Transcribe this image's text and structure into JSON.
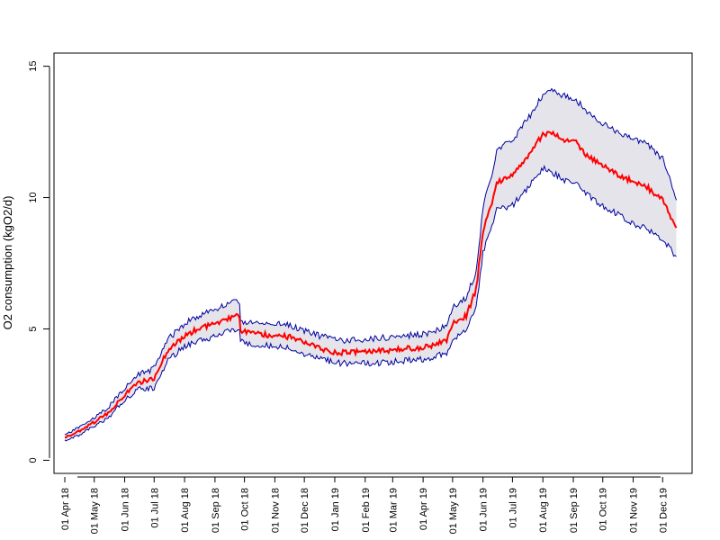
{
  "chart_data": {
    "type": "line",
    "title": "",
    "xlabel": "",
    "ylabel": "O2 consumption (kgO2/d)",
    "x_type": "date",
    "xlim": [
      "2018-03-21",
      "2019-12-31"
    ],
    "ylim": [
      -0.5,
      15.5
    ],
    "y_ticks": [
      0,
      5,
      10,
      15
    ],
    "y_tick_labels": [
      "0",
      "5",
      "10",
      "15"
    ],
    "x_ticks": [
      "2018-04-01",
      "2018-05-01",
      "2018-06-01",
      "2018-07-01",
      "2018-08-01",
      "2018-09-01",
      "2018-10-01",
      "2018-11-01",
      "2018-12-01",
      "2019-01-01",
      "2019-02-01",
      "2019-03-01",
      "2019-04-01",
      "2019-05-01",
      "2019-06-01",
      "2019-07-01",
      "2019-08-01",
      "2019-09-01",
      "2019-10-01",
      "2019-11-01",
      "2019-12-01"
    ],
    "x_tick_labels": [
      "01 Apr 18",
      "01 May 18",
      "01 Jun 18",
      "01 Jul 18",
      "01 Aug 18",
      "01 Sep 18",
      "01 Oct 18",
      "01 Nov 18",
      "01 Dec 18",
      "01 Jan 19",
      "01 Feb 19",
      "01 Mar 19",
      "01 Apr 19",
      "01 May 19",
      "01 Jun 19",
      "01 Jul 19",
      "01 Aug 19",
      "01 Sep 19",
      "01 Oct 19",
      "01 Nov 19",
      "01 Dec 19"
    ],
    "grid": false,
    "legend": "none",
    "colors": {
      "series": "#ff0000",
      "band_fill": "#e4e4ea",
      "band_line": "#00009f"
    },
    "series": [
      {
        "role": "estimate",
        "x": [
          "2018-04-01",
          "2018-04-15",
          "2018-05-01",
          "2018-05-15",
          "2018-06-01",
          "2018-06-15",
          "2018-07-01",
          "2018-07-15",
          "2018-08-01",
          "2018-08-15",
          "2018-09-01",
          "2018-09-15",
          "2018-09-26",
          "2018-09-27",
          "2018-10-15",
          "2018-11-01",
          "2018-11-15",
          "2018-12-01",
          "2018-12-15",
          "2019-01-01",
          "2019-01-15",
          "2019-02-01",
          "2019-02-15",
          "2019-03-01",
          "2019-03-15",
          "2019-04-01",
          "2019-04-15",
          "2019-04-25",
          "2019-05-01",
          "2019-05-15",
          "2019-05-25",
          "2019-06-01",
          "2019-06-10",
          "2019-06-15",
          "2019-07-01",
          "2019-07-15",
          "2019-08-01",
          "2019-08-10",
          "2019-08-20",
          "2019-09-01",
          "2019-09-15",
          "2019-10-01",
          "2019-10-15",
          "2019-11-01",
          "2019-11-15",
          "2019-12-01",
          "2019-12-15"
        ],
        "y": [
          0.85,
          1.1,
          1.45,
          1.8,
          2.5,
          2.95,
          3.1,
          4.2,
          4.75,
          5.0,
          5.2,
          5.4,
          5.5,
          4.9,
          4.8,
          4.75,
          4.7,
          4.5,
          4.3,
          4.1,
          4.1,
          4.15,
          4.15,
          4.2,
          4.25,
          4.3,
          4.4,
          4.6,
          5.2,
          5.5,
          6.5,
          8.7,
          9.8,
          10.6,
          10.8,
          11.5,
          12.4,
          12.5,
          12.2,
          12.2,
          11.6,
          11.2,
          10.9,
          10.6,
          10.4,
          9.9,
          8.85
        ]
      },
      {
        "role": "upper",
        "x": [
          "2018-04-01",
          "2018-04-15",
          "2018-05-01",
          "2018-05-15",
          "2018-06-01",
          "2018-06-15",
          "2018-07-01",
          "2018-07-15",
          "2018-08-01",
          "2018-08-15",
          "2018-09-01",
          "2018-09-15",
          "2018-09-26",
          "2018-09-27",
          "2018-10-15",
          "2018-11-01",
          "2018-11-15",
          "2018-12-01",
          "2018-12-15",
          "2019-01-01",
          "2019-01-15",
          "2019-02-01",
          "2019-02-15",
          "2019-03-01",
          "2019-03-15",
          "2019-04-01",
          "2019-04-15",
          "2019-04-25",
          "2019-05-01",
          "2019-05-15",
          "2019-05-25",
          "2019-06-01",
          "2019-06-10",
          "2019-06-15",
          "2019-07-01",
          "2019-07-15",
          "2019-08-01",
          "2019-08-10",
          "2019-08-20",
          "2019-09-01",
          "2019-09-15",
          "2019-10-01",
          "2019-10-15",
          "2019-11-01",
          "2019-11-15",
          "2019-12-01",
          "2019-12-15"
        ],
        "y": [
          0.95,
          1.25,
          1.6,
          2.0,
          2.75,
          3.25,
          3.5,
          4.6,
          5.2,
          5.5,
          5.75,
          5.95,
          6.05,
          5.3,
          5.2,
          5.2,
          5.15,
          4.95,
          4.75,
          4.6,
          4.55,
          4.6,
          4.65,
          4.7,
          4.75,
          4.8,
          4.95,
          5.2,
          5.8,
          6.2,
          7.2,
          9.6,
          10.9,
          11.8,
          12.2,
          12.9,
          13.9,
          14.1,
          13.9,
          13.8,
          13.3,
          12.8,
          12.5,
          12.3,
          12.0,
          11.5,
          9.9
        ]
      },
      {
        "role": "lower",
        "x": [
          "2018-04-01",
          "2018-04-15",
          "2018-05-01",
          "2018-05-15",
          "2018-06-01",
          "2018-06-15",
          "2018-07-01",
          "2018-07-15",
          "2018-08-01",
          "2018-08-15",
          "2018-09-01",
          "2018-09-15",
          "2018-09-26",
          "2018-09-27",
          "2018-10-15",
          "2018-11-01",
          "2018-11-15",
          "2018-12-01",
          "2018-12-15",
          "2019-01-01",
          "2019-01-15",
          "2019-02-01",
          "2019-02-15",
          "2019-03-01",
          "2019-03-15",
          "2019-04-01",
          "2019-04-15",
          "2019-04-25",
          "2019-05-01",
          "2019-05-15",
          "2019-05-25",
          "2019-06-01",
          "2019-06-10",
          "2019-06-15",
          "2019-07-01",
          "2019-07-15",
          "2019-08-01",
          "2019-08-10",
          "2019-08-20",
          "2019-09-01",
          "2019-09-15",
          "2019-10-01",
          "2019-10-15",
          "2019-11-01",
          "2019-11-15",
          "2019-12-01",
          "2019-12-15"
        ],
        "y": [
          0.75,
          0.95,
          1.3,
          1.6,
          2.3,
          2.7,
          2.75,
          3.8,
          4.35,
          4.55,
          4.7,
          4.9,
          4.95,
          4.5,
          4.4,
          4.35,
          4.25,
          4.05,
          3.9,
          3.7,
          3.7,
          3.7,
          3.7,
          3.75,
          3.8,
          3.85,
          3.95,
          4.1,
          4.6,
          4.9,
          5.8,
          7.9,
          8.9,
          9.5,
          9.7,
          10.3,
          11.1,
          11.0,
          10.7,
          10.6,
          10.1,
          9.7,
          9.4,
          9.0,
          8.8,
          8.4,
          7.75
        ]
      }
    ]
  }
}
